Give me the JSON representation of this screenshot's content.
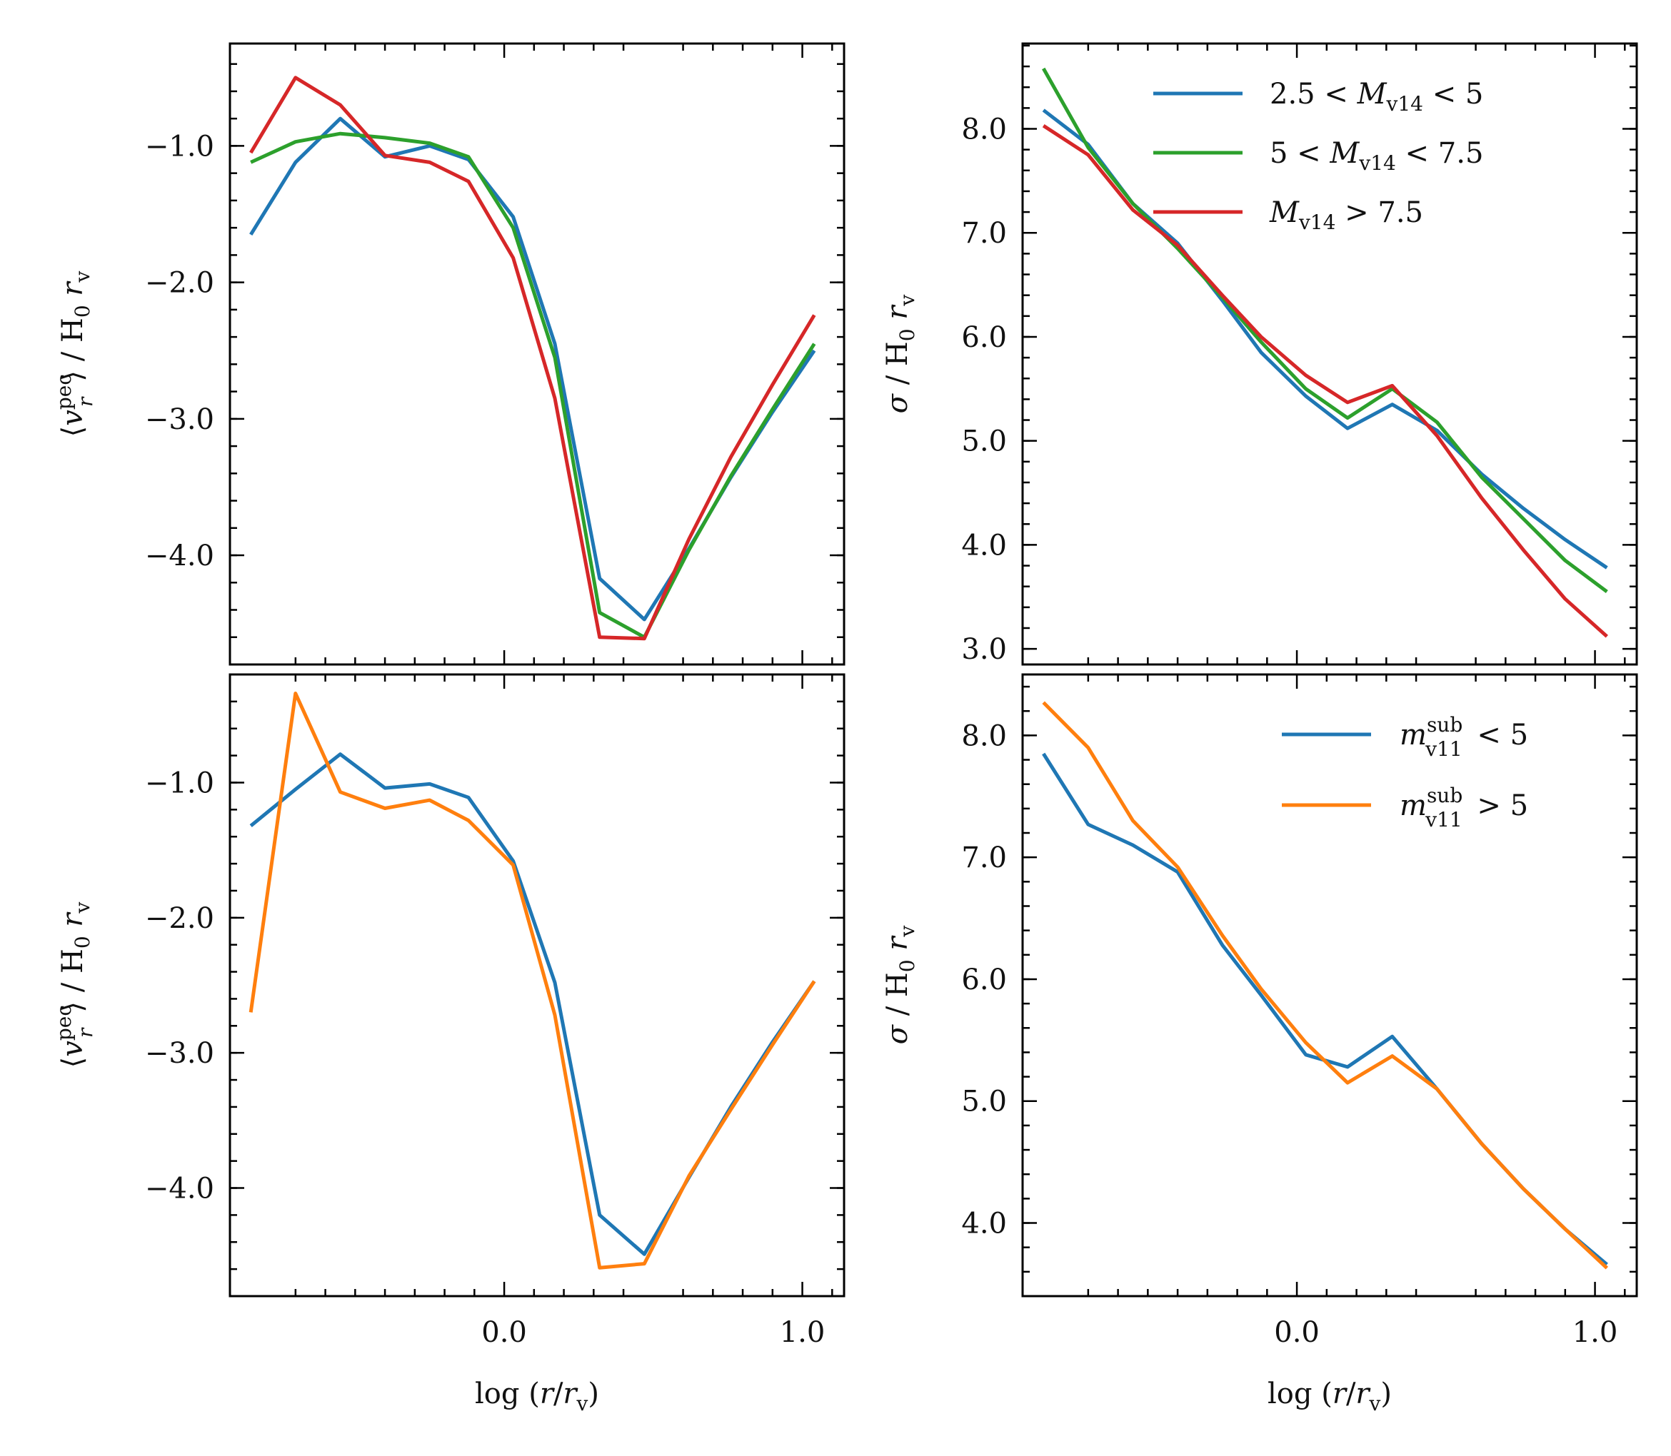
{
  "colors": {
    "blue": "#1f77b4",
    "orange": "#ff7f0e",
    "green": "#2ca02c",
    "red": "#d62728"
  },
  "chart_data": [
    {
      "id": "top-left",
      "type": "line",
      "xlabel": "log (r/r_v)",
      "ylabel": "⟨v_r^pec⟩ / H_0 r_v",
      "xlim": [
        -0.92,
        1.14
      ],
      "ylim": [
        -4.8,
        -0.25
      ],
      "xticks": [
        {
          "value": 0.0,
          "label": "0.0"
        },
        {
          "value": 1.0,
          "label": "1.0"
        }
      ],
      "yticks": [
        {
          "value": -1.0,
          "label": "−1.0"
        },
        {
          "value": -2.0,
          "label": "−2.0"
        },
        {
          "value": -3.0,
          "label": "−3.0"
        },
        {
          "value": -4.0,
          "label": "−4.0"
        }
      ],
      "x": [
        -0.85,
        -0.7,
        -0.55,
        -0.4,
        -0.25,
        -0.12,
        0.03,
        0.17,
        0.32,
        0.47,
        0.62,
        0.76,
        0.9,
        1.04
      ],
      "series": [
        {
          "name": "2.5 < M_v14 < 5",
          "color": "blue",
          "values": [
            -1.65,
            -1.12,
            -0.8,
            -1.08,
            -1.0,
            -1.1,
            -1.52,
            -2.45,
            -4.17,
            -4.47,
            -3.95,
            -3.43,
            -2.95,
            -2.5
          ]
        },
        {
          "name": "5 < M_v14 < 7.5",
          "color": "green",
          "values": [
            -1.12,
            -0.97,
            -0.91,
            -0.94,
            -0.98,
            -1.08,
            -1.6,
            -2.55,
            -4.42,
            -4.6,
            -3.96,
            -3.42,
            -2.93,
            -2.45
          ]
        },
        {
          "name": "M_v14 > 7.5",
          "color": "red",
          "values": [
            -1.05,
            -0.5,
            -0.7,
            -1.07,
            -1.12,
            -1.26,
            -1.82,
            -2.85,
            -4.6,
            -4.61,
            -3.88,
            -3.28,
            -2.75,
            -2.24
          ]
        }
      ]
    },
    {
      "id": "top-right",
      "type": "line",
      "xlabel": "log (r/r_v)",
      "ylabel": "σ / H_0 r_v",
      "xlim": [
        -0.92,
        1.14
      ],
      "ylim": [
        2.85,
        8.82
      ],
      "xticks": [
        {
          "value": 0.0,
          "label": "0.0"
        },
        {
          "value": 1.0,
          "label": "1.0"
        }
      ],
      "yticks": [
        {
          "value": 3.0,
          "label": "3.0"
        },
        {
          "value": 4.0,
          "label": "4.0"
        },
        {
          "value": 5.0,
          "label": "5.0"
        },
        {
          "value": 6.0,
          "label": "6.0"
        },
        {
          "value": 7.0,
          "label": "7.0"
        },
        {
          "value": 8.0,
          "label": "8.0"
        }
      ],
      "x": [
        -0.85,
        -0.7,
        -0.55,
        -0.4,
        -0.25,
        -0.12,
        0.03,
        0.17,
        0.32,
        0.47,
        0.62,
        0.76,
        0.9,
        1.04
      ],
      "legend": {
        "position": "upper-right"
      },
      "series": [
        {
          "name": "2.5 < M_v14 < 5",
          "color": "blue",
          "legend_label": "2.5 < M",
          "legend_sub": "v14",
          "legend_tail": " < 5",
          "values": [
            8.18,
            7.85,
            7.28,
            6.9,
            6.35,
            5.85,
            5.43,
            5.12,
            5.35,
            5.1,
            4.68,
            4.35,
            4.05,
            3.78
          ]
        },
        {
          "name": "5 < M_v14 < 7.5",
          "color": "green",
          "legend_label": "5 < M",
          "legend_sub": "v14",
          "legend_tail": " < 7.5",
          "values": [
            8.58,
            7.82,
            7.28,
            6.85,
            6.38,
            5.95,
            5.5,
            5.22,
            5.5,
            5.18,
            4.65,
            4.25,
            3.85,
            3.55
          ]
        },
        {
          "name": "M_v14 > 7.5",
          "color": "red",
          "legend_label": "M",
          "legend_sub": "v14",
          "legend_tail": " > 7.5",
          "values": [
            8.03,
            7.75,
            7.22,
            6.88,
            6.4,
            6.0,
            5.63,
            5.37,
            5.53,
            5.05,
            4.45,
            3.95,
            3.48,
            3.12
          ]
        }
      ]
    },
    {
      "id": "bottom-left",
      "type": "line",
      "xlabel": "log (r/r_v)",
      "ylabel": "⟨v_r^pec⟩ / H_0 r_v",
      "xlim": [
        -0.92,
        1.14
      ],
      "ylim": [
        -4.8,
        -0.2
      ],
      "xticks": [
        {
          "value": 0.0,
          "label": "0.0"
        },
        {
          "value": 1.0,
          "label": "1.0"
        }
      ],
      "yticks": [
        {
          "value": -1.0,
          "label": "−1.0"
        },
        {
          "value": -2.0,
          "label": "−2.0"
        },
        {
          "value": -3.0,
          "label": "−3.0"
        },
        {
          "value": -4.0,
          "label": "−4.0"
        }
      ],
      "x": [
        -0.85,
        -0.7,
        -0.55,
        -0.4,
        -0.25,
        -0.12,
        0.03,
        0.17,
        0.32,
        0.47,
        0.62,
        0.76,
        0.9,
        1.04
      ],
      "series": [
        {
          "name": "m_v11^sub < 5",
          "color": "blue",
          "values": [
            -1.32,
            -1.05,
            -0.79,
            -1.04,
            -1.01,
            -1.11,
            -1.58,
            -2.48,
            -4.2,
            -4.49,
            -3.92,
            -3.4,
            -2.92,
            -2.47
          ]
        },
        {
          "name": "m_v11^sub > 5",
          "color": "orange",
          "values": [
            -2.7,
            -0.34,
            -1.07,
            -1.19,
            -1.13,
            -1.28,
            -1.61,
            -2.72,
            -4.59,
            -4.56,
            -3.91,
            -3.42,
            -2.94,
            -2.47
          ]
        }
      ]
    },
    {
      "id": "bottom-right",
      "type": "line",
      "xlabel": "log (r/r_v)",
      "ylabel": "σ / H_0 r_v",
      "xlim": [
        -0.92,
        1.14
      ],
      "ylim": [
        3.4,
        8.5
      ],
      "xticks": [
        {
          "value": 0.0,
          "label": "0.0"
        },
        {
          "value": 1.0,
          "label": "1.0"
        }
      ],
      "yticks": [
        {
          "value": 4.0,
          "label": "4.0"
        },
        {
          "value": 5.0,
          "label": "5.0"
        },
        {
          "value": 6.0,
          "label": "6.0"
        },
        {
          "value": 7.0,
          "label": "7.0"
        },
        {
          "value": 8.0,
          "label": "8.0"
        }
      ],
      "x": [
        -0.85,
        -0.7,
        -0.55,
        -0.4,
        -0.25,
        -0.12,
        0.03,
        0.17,
        0.32,
        0.47,
        0.62,
        0.76,
        0.9,
        1.04
      ],
      "legend": {
        "position": "upper-right"
      },
      "series": [
        {
          "name": "m_v11^sub < 5",
          "color": "blue",
          "legend_label": "m",
          "legend_sub": "v11",
          "legend_sup": "sub",
          "legend_tail": " < 5",
          "values": [
            7.85,
            7.27,
            7.1,
            6.88,
            6.28,
            5.87,
            5.38,
            5.28,
            5.53,
            5.1,
            4.65,
            4.28,
            3.95,
            3.66
          ]
        },
        {
          "name": "m_v11^sub > 5",
          "color": "orange",
          "legend_label": "m",
          "legend_sub": "v11",
          "legend_sup": "sub",
          "legend_tail": " > 5",
          "values": [
            8.27,
            7.9,
            7.3,
            6.92,
            6.36,
            5.92,
            5.48,
            5.15,
            5.37,
            5.1,
            4.65,
            4.28,
            3.95,
            3.63
          ]
        }
      ]
    }
  ]
}
